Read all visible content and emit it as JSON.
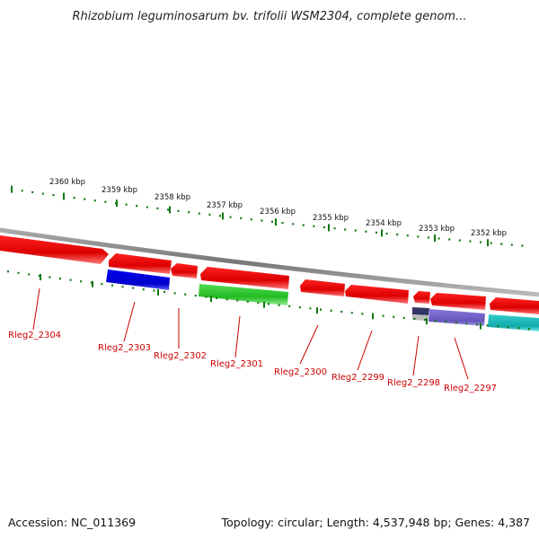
{
  "title": "Rhizobium leguminosarum bv. trifolii WSM2304, complete genom...",
  "footer": {
    "accession": "Accession: NC_011369",
    "summary": "Topology: circular; Length: 4,537,948 bp; Genes: 4,387"
  },
  "ruler": {
    "labels": [
      "2360 kbp",
      "2359 kbp",
      "2358 kbp",
      "2357 kbp",
      "2356 kbp",
      "2355 kbp",
      "2354 kbp",
      "2353 kbp",
      "2352 kbp"
    ]
  },
  "colors": {
    "red": "#ee0000",
    "blue": "#0000dd",
    "green": "#33cc33",
    "purple": "#7766cc",
    "cyan": "#22bbbb",
    "tick_green": "#117711",
    "label_red": "#cc0000"
  },
  "genes": [
    {
      "label": "Rleg2_2304"
    },
    {
      "label": "Rleg2_2303"
    },
    {
      "label": "Rleg2_2302"
    },
    {
      "label": "Rleg2_2301"
    },
    {
      "label": "Rleg2_2300"
    },
    {
      "label": "Rleg2_2299"
    },
    {
      "label": "Rleg2_2298"
    },
    {
      "label": "Rleg2_2297"
    }
  ]
}
